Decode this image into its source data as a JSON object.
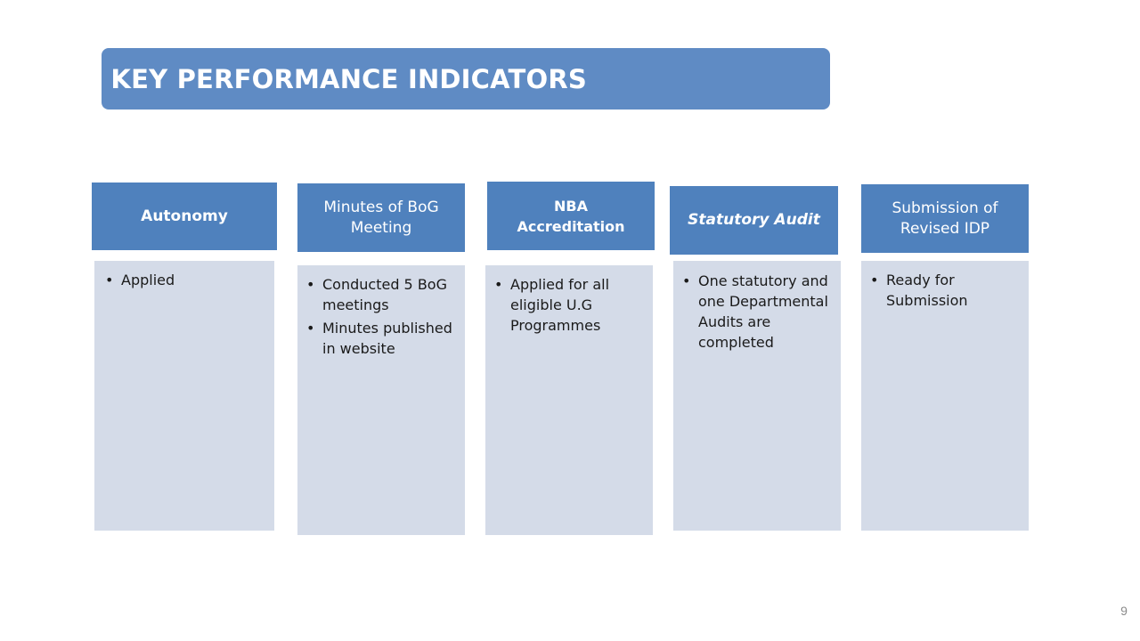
{
  "slide": {
    "title": "KEY PERFORMANCE INDICATORS",
    "page_number": "9"
  },
  "columns": [
    {
      "heading": "Autonomy",
      "items": [
        "Applied"
      ]
    },
    {
      "heading": "Minutes of BoG Meeting",
      "items": [
        "Conducted 5 BoG meetings",
        "Minutes published in website"
      ]
    },
    {
      "heading": "NBA Accreditation",
      "items": [
        "Applied for all eligible U.G Programmes"
      ]
    },
    {
      "heading": "Statutory Audit",
      "items": [
        "One statutory and one Departmental Audits are completed"
      ]
    },
    {
      "heading": "Submission of Revised IDP",
      "items": [
        "Ready for Submission"
      ]
    }
  ],
  "colors": {
    "title_bar": "#5f8bc4",
    "header_fill": "#4f81bd",
    "card_fill": "#d4dbe8"
  }
}
